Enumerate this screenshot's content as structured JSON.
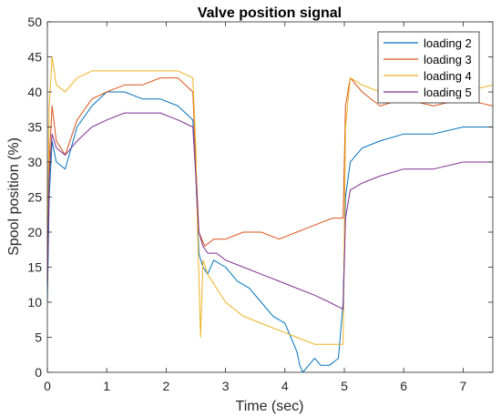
{
  "chart_data": {
    "type": "line",
    "title": "Valve position signal",
    "xlabel": "Time (sec)",
    "ylabel": "Spool position (%)",
    "xlim": [
      0,
      7.5
    ],
    "ylim": [
      0,
      50
    ],
    "xticks": [
      0,
      1,
      2,
      3,
      4,
      5,
      6,
      7
    ],
    "yticks": [
      0,
      5,
      10,
      15,
      20,
      25,
      30,
      35,
      40,
      45,
      50
    ],
    "legend_position": "top-right",
    "grid": false,
    "series": [
      {
        "name": "loading 2",
        "color": "#0072BD",
        "x": [
          0,
          0.03,
          0.08,
          0.15,
          0.3,
          0.5,
          0.75,
          1.0,
          1.3,
          1.6,
          1.9,
          2.2,
          2.45,
          2.5,
          2.55,
          2.62,
          2.7,
          2.8,
          3.0,
          3.2,
          3.4,
          3.6,
          3.8,
          4.0,
          4.1,
          4.2,
          4.25,
          4.3,
          4.4,
          4.5,
          4.6,
          4.75,
          4.9,
          4.98,
          5.02,
          5.1,
          5.3,
          5.6,
          6.0,
          6.5,
          7.0,
          7.5
        ],
        "y": [
          10,
          25,
          33,
          30,
          29,
          35,
          38,
          40,
          40,
          39,
          39,
          38,
          36,
          28,
          17,
          15,
          14,
          16,
          15,
          13,
          12,
          10,
          8,
          7,
          5,
          3,
          1,
          0,
          1,
          2,
          1,
          1,
          2,
          10,
          25,
          30,
          32,
          33,
          34,
          34,
          35,
          35
        ]
      },
      {
        "name": "loading 3",
        "color": "#D95319",
        "x": [
          0,
          0.03,
          0.08,
          0.15,
          0.3,
          0.5,
          0.75,
          1.0,
          1.3,
          1.6,
          1.9,
          2.2,
          2.45,
          2.5,
          2.55,
          2.65,
          2.8,
          3.0,
          3.3,
          3.6,
          3.9,
          4.2,
          4.5,
          4.8,
          4.98,
          5.02,
          5.1,
          5.3,
          5.6,
          6.0,
          6.5,
          7.0,
          7.5
        ],
        "y": [
          12,
          30,
          38,
          33,
          31,
          36,
          39,
          40,
          41,
          41,
          42,
          42,
          40,
          30,
          20,
          18,
          19,
          19,
          20,
          20,
          19,
          20,
          21,
          22,
          22,
          38,
          42,
          40,
          38,
          39,
          38,
          39,
          38
        ]
      },
      {
        "name": "loading 4",
        "color": "#EDB120",
        "x": [
          0,
          0.03,
          0.08,
          0.15,
          0.3,
          0.5,
          0.75,
          1.0,
          1.3,
          1.6,
          1.9,
          2.2,
          2.45,
          2.5,
          2.53,
          2.58,
          2.62,
          2.7,
          2.85,
          3.0,
          3.3,
          3.6,
          3.9,
          4.2,
          4.5,
          4.75,
          4.98,
          5.02,
          5.1,
          5.3,
          5.6,
          6.0,
          6.5,
          7.0,
          7.5
        ],
        "y": [
          15,
          38,
          45,
          41,
          40,
          42,
          43,
          43,
          43,
          43,
          43,
          43,
          42,
          32,
          20,
          5,
          16,
          14,
          12,
          10,
          8,
          7,
          6,
          5,
          4,
          4,
          4,
          35,
          42,
          41,
          40,
          40,
          40,
          40,
          41
        ]
      },
      {
        "name": "loading 5",
        "color": "#7E2F8E",
        "x": [
          0,
          0.03,
          0.08,
          0.15,
          0.3,
          0.5,
          0.75,
          1.0,
          1.3,
          1.6,
          1.9,
          2.2,
          2.45,
          2.5,
          2.55,
          2.62,
          2.7,
          2.85,
          3.0,
          3.3,
          3.6,
          3.9,
          4.2,
          4.5,
          4.75,
          4.98,
          5.02,
          5.1,
          5.3,
          5.6,
          6.0,
          6.5,
          7.0,
          7.5
        ],
        "y": [
          12,
          28,
          34,
          32,
          31,
          33,
          35,
          36,
          37,
          37,
          37,
          36,
          35,
          28,
          20,
          18,
          17,
          17,
          16,
          15,
          14,
          13,
          12,
          11,
          10,
          9,
          22,
          26,
          27,
          28,
          29,
          29,
          30,
          30
        ]
      }
    ]
  }
}
